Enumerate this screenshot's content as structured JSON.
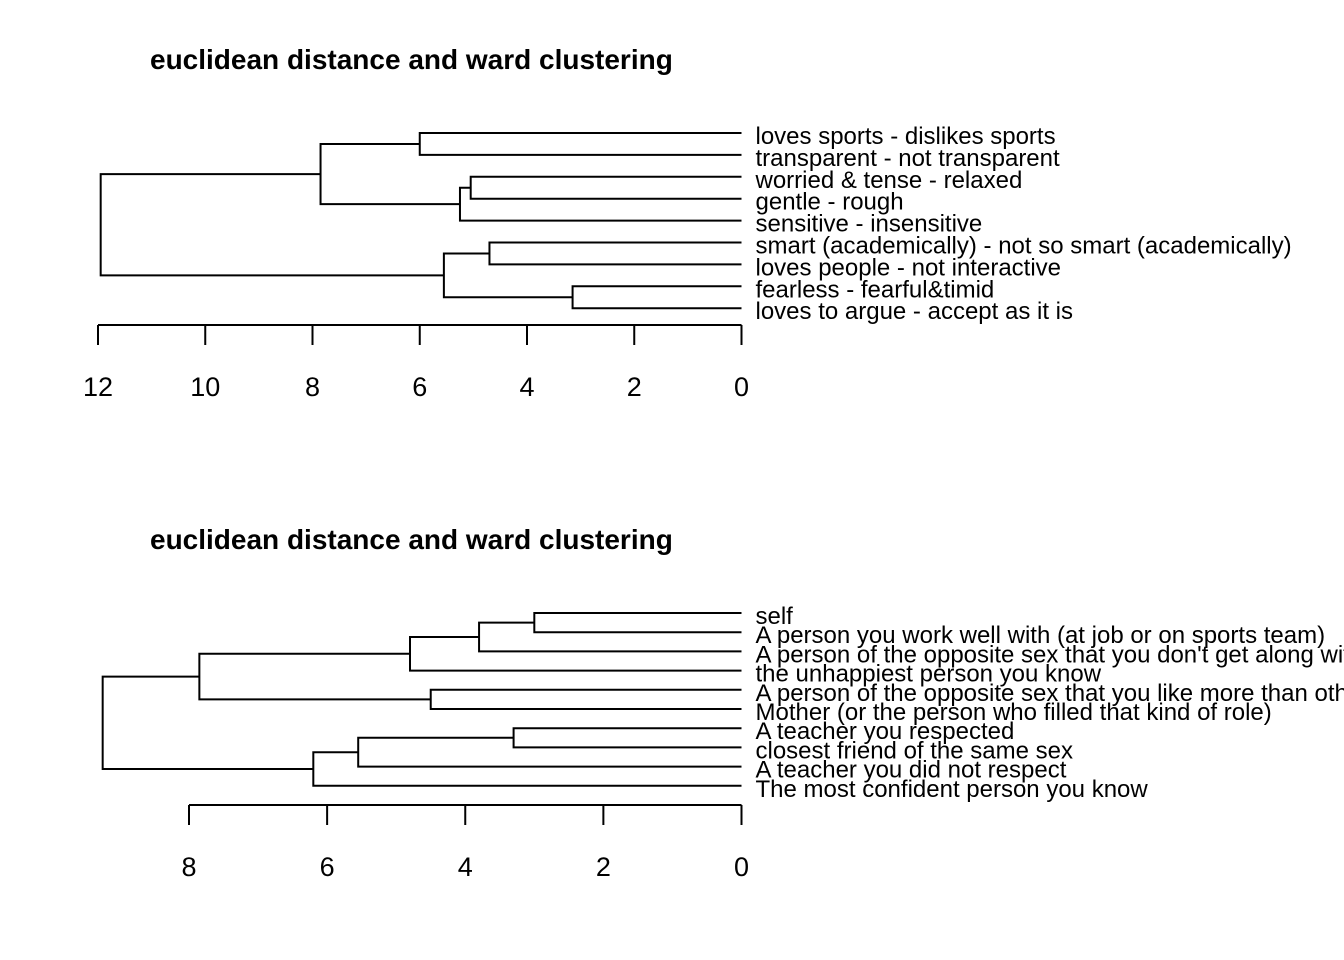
{
  "chart_data": [
    {
      "type": "dendrogram",
      "title": "euclidean distance and ward clustering",
      "orientation": "horizontal",
      "axis_ticks": [
        12,
        10,
        8,
        6,
        4,
        2,
        0
      ],
      "xlim": [
        12,
        0
      ],
      "leaves": [
        "loves sports - dislikes sports",
        "transparent - not transparent",
        "worried & tense - relaxed",
        "gentle - rough",
        "sensitive - insensitive",
        "smart (academically) - not so smart (academically)",
        "loves people - not interactive",
        "fearless - fearful&timid",
        "loves to argue - accept as it is"
      ],
      "merges": [
        {
          "left": 7,
          "right": 8,
          "height": 3.15
        },
        {
          "left": 2,
          "right": 3,
          "height": 5.05
        },
        {
          "left": 5,
          "right": 6,
          "height": 4.7
        },
        {
          "left": 0,
          "right": 1,
          "height": 6.0
        },
        {
          "left": "m1",
          "right": 4,
          "height": 5.25
        },
        {
          "left": "m2",
          "right": "m0",
          "height": 5.55
        },
        {
          "left": "m3",
          "right": "m4",
          "height": 7.85
        },
        {
          "left": "m6",
          "right": "m5",
          "height": 11.95
        }
      ]
    },
    {
      "type": "dendrogram",
      "title": "euclidean distance and ward clustering",
      "orientation": "horizontal",
      "axis_ticks": [
        8,
        6,
        4,
        2,
        0
      ],
      "xlim": [
        8,
        0
      ],
      "leaves": [
        "self",
        "A person you work well with (at job or on sports team)",
        "A person of the opposite sex that you don't get along with",
        "the unhappiest person you know",
        "A person of the opposite sex that you like more than others",
        "Mother (or the person who filled that kind of role)",
        "A teacher you respected",
        "closest friend of the same sex",
        "A teacher you did not respect",
        "The most confident person you know"
      ],
      "merges": [
        {
          "left": 0,
          "right": 1,
          "height": 3.0
        },
        {
          "left": "m0",
          "right": 2,
          "height": 3.8
        },
        {
          "left": "m1",
          "right": 3,
          "height": 4.8
        },
        {
          "left": 4,
          "right": 5,
          "height": 4.5
        },
        {
          "left": "m2",
          "right": "m3",
          "height": 7.85
        },
        {
          "left": 6,
          "right": 7,
          "height": 3.3
        },
        {
          "left": "m5",
          "right": 8,
          "height": 5.55
        },
        {
          "left": "m6",
          "right": 9,
          "height": 6.2
        },
        {
          "left": "m4",
          "right": "m7",
          "height": 9.25
        }
      ]
    }
  ]
}
